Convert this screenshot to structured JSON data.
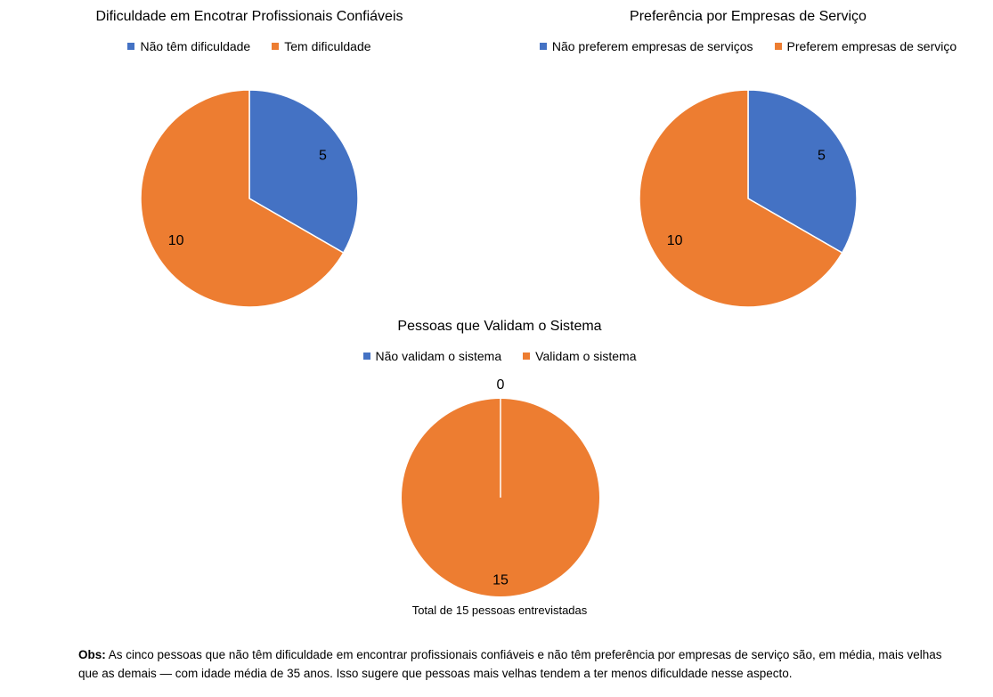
{
  "colors": {
    "blue": "#4472C4",
    "orange": "#ED7D31"
  },
  "chart_data": [
    {
      "type": "pie",
      "title": "Dificuldade em Encotrar Profissionais Confiáveis",
      "categories": [
        "Não têm dificuldade",
        "Tem dificuldade"
      ],
      "values": [
        5,
        10
      ],
      "data_labels": [
        "5",
        "10"
      ],
      "legend": "top"
    },
    {
      "type": "pie",
      "title": "Preferência por Empresas de Serviço",
      "categories": [
        "Não preferem empresas de serviços",
        "Preferem empresas de serviço"
      ],
      "values": [
        5,
        10
      ],
      "data_labels": [
        "5",
        "10"
      ],
      "legend": "top"
    },
    {
      "type": "pie",
      "title": "Pessoas que Validam o Sistema",
      "categories": [
        "Não validam o sistema",
        "Validam o sistema"
      ],
      "values": [
        0,
        15
      ],
      "data_labels": [
        "0",
        "15"
      ],
      "legend": "top",
      "footnote": "Total de 15 pessoas entrevistadas"
    }
  ],
  "observation": {
    "label": "Obs:",
    "text": "As cinco pessoas que não têm dificuldade em encontrar profissionais confiáveis e não têm preferência por empresas de serviço são, em média, mais velhas que as demais — com idade média de 35 anos. Isso sugere que pessoas mais velhas tendem a ter menos dificuldade nesse aspecto."
  }
}
